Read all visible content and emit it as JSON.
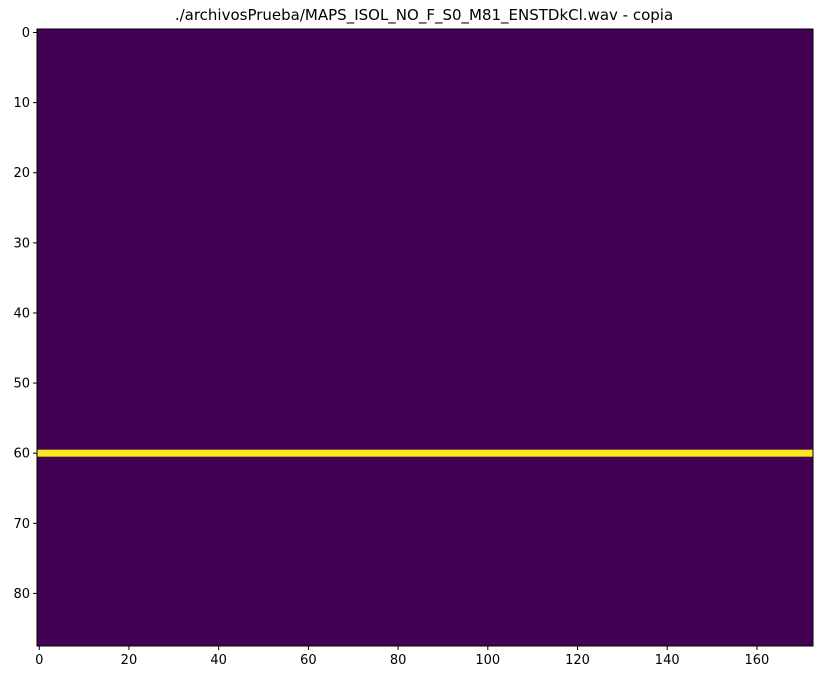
{
  "chart_data": {
    "type": "heatmap",
    "title": "./archivosPrueba/MAPS_ISOL_NO_F_S0_M81_ENSTDkCl.wav - copia",
    "xlabel": "",
    "ylabel": "",
    "n_cols": 173,
    "n_rows": 88,
    "xlim": [
      -0.5,
      172.5
    ],
    "ylim": [
      87.5,
      -0.5
    ],
    "y_axis_inverted": true,
    "x_ticks": [
      0,
      20,
      40,
      60,
      80,
      100,
      120,
      140,
      160
    ],
    "y_ticks": [
      0,
      10,
      20,
      30,
      40,
      50,
      60,
      70,
      80
    ],
    "active_row": 60,
    "active_value": 1,
    "background_value": 0,
    "colormap": "viridis",
    "colors": {
      "low": "#440154",
      "high": "#fde725"
    },
    "grid": false,
    "legend": "none"
  }
}
